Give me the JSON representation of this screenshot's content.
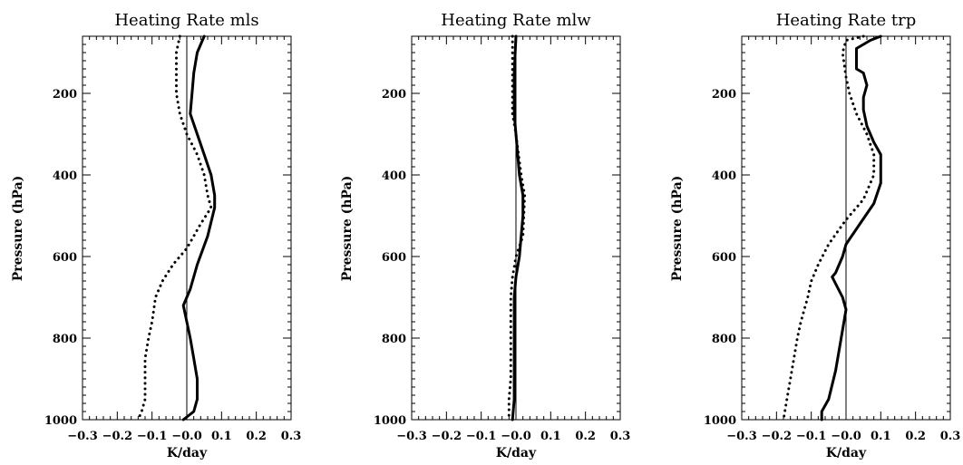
{
  "chart_data": [
    {
      "type": "line",
      "title": "Heating Rate mls",
      "xlabel": "K/day",
      "ylabel": "Pressure (hPa)",
      "xlim": [
        -0.3,
        0.3
      ],
      "ylim": [
        1000,
        60
      ],
      "y_inverted": true,
      "xticks": [
        -0.3,
        -0.2,
        -0.1,
        0.0,
        0.1,
        0.2,
        0.3
      ],
      "xtick_labels": [
        "−0.3",
        "−0.2",
        "−0.1",
        "−0.0",
        "0.1",
        "0.2",
        "0.3"
      ],
      "yticks": [
        200,
        400,
        600,
        800,
        1000
      ],
      "ytick_labels": [
        "200",
        "400",
        "600",
        "800",
        "1000"
      ],
      "zero_line": true,
      "series": [
        {
          "style": "solid",
          "points": [
            [
              0.05,
              60
            ],
            [
              0.03,
              100
            ],
            [
              0.02,
              150
            ],
            [
              0.015,
              200
            ],
            [
              0.01,
              250
            ],
            [
              0.03,
              300
            ],
            [
              0.05,
              350
            ],
            [
              0.07,
              400
            ],
            [
              0.08,
              450
            ],
            [
              0.08,
              480
            ],
            [
              0.06,
              550
            ],
            [
              0.03,
              620
            ],
            [
              0.01,
              680
            ],
            [
              -0.01,
              720
            ],
            [
              0.0,
              760
            ],
            [
              0.01,
              800
            ],
            [
              0.02,
              850
            ],
            [
              0.03,
              900
            ],
            [
              0.03,
              950
            ],
            [
              0.02,
              980
            ],
            [
              -0.01,
              1000
            ]
          ]
        },
        {
          "style": "dotted",
          "points": [
            [
              -0.02,
              60
            ],
            [
              -0.03,
              100
            ],
            [
              -0.03,
              150
            ],
            [
              -0.03,
              200
            ],
            [
              -0.02,
              250
            ],
            [
              0.0,
              300
            ],
            [
              0.03,
              350
            ],
            [
              0.05,
              400
            ],
            [
              0.06,
              450
            ],
            [
              0.07,
              480
            ],
            [
              0.04,
              520
            ],
            [
              0.0,
              580
            ],
            [
              -0.04,
              620
            ],
            [
              -0.07,
              660
            ],
            [
              -0.09,
              700
            ],
            [
              -0.1,
              760
            ],
            [
              -0.11,
              800
            ],
            [
              -0.12,
              850
            ],
            [
              -0.12,
              900
            ],
            [
              -0.12,
              950
            ],
            [
              -0.13,
              980
            ],
            [
              -0.14,
              1000
            ]
          ]
        }
      ]
    },
    {
      "type": "line",
      "title": "Heating Rate mlw",
      "xlabel": "K/day",
      "ylabel": "Pressure (hPa)",
      "xlim": [
        -0.3,
        0.3
      ],
      "ylim": [
        1000,
        60
      ],
      "y_inverted": true,
      "xticks": [
        -0.3,
        -0.2,
        -0.1,
        0.0,
        0.1,
        0.2,
        0.3
      ],
      "xtick_labels": [
        "−0.3",
        "−0.2",
        "−0.1",
        "−0.0",
        "0.1",
        "0.2",
        "0.3"
      ],
      "yticks": [
        200,
        400,
        600,
        800,
        1000
      ],
      "ytick_labels": [
        "200",
        "400",
        "600",
        "800",
        "1000"
      ],
      "zero_line": true,
      "series": [
        {
          "style": "solid",
          "points": [
            [
              0.0,
              60
            ],
            [
              -0.005,
              150
            ],
            [
              -0.005,
              250
            ],
            [
              0.0,
              300
            ],
            [
              0.01,
              400
            ],
            [
              0.02,
              450
            ],
            [
              0.02,
              500
            ],
            [
              0.01,
              600
            ],
            [
              0.0,
              650
            ],
            [
              -0.005,
              700
            ],
            [
              -0.005,
              800
            ],
            [
              -0.005,
              900
            ],
            [
              -0.005,
              950
            ],
            [
              -0.01,
              1000
            ]
          ]
        },
        {
          "style": "dotted",
          "points": [
            [
              -0.01,
              60
            ],
            [
              -0.01,
              150
            ],
            [
              -0.01,
              250
            ],
            [
              0.0,
              300
            ],
            [
              0.015,
              400
            ],
            [
              0.025,
              450
            ],
            [
              0.02,
              550
            ],
            [
              0.0,
              600
            ],
            [
              -0.01,
              650
            ],
            [
              -0.015,
              700
            ],
            [
              -0.015,
              800
            ],
            [
              -0.015,
              900
            ],
            [
              -0.02,
              950
            ],
            [
              -0.02,
              1000
            ]
          ]
        }
      ]
    },
    {
      "type": "line",
      "title": "Heating Rate trp",
      "xlabel": "K/day",
      "ylabel": "Pressure (hPa)",
      "xlim": [
        -0.3,
        0.3
      ],
      "ylim": [
        1000,
        60
      ],
      "y_inverted": true,
      "xticks": [
        -0.3,
        -0.2,
        -0.1,
        0.0,
        0.1,
        0.2,
        0.3
      ],
      "xtick_labels": [
        "−0.3",
        "−0.2",
        "−0.1",
        "−0.0",
        "0.1",
        "0.2",
        "0.3"
      ],
      "yticks": [
        200,
        400,
        600,
        800,
        1000
      ],
      "ytick_labels": [
        "200",
        "400",
        "600",
        "800",
        "1000"
      ],
      "zero_line": true,
      "series": [
        {
          "style": "solid",
          "points": [
            [
              0.1,
              60
            ],
            [
              0.07,
              70
            ],
            [
              0.03,
              90
            ],
            [
              0.03,
              120
            ],
            [
              0.03,
              140
            ],
            [
              0.05,
              150
            ],
            [
              0.06,
              180
            ],
            [
              0.05,
              210
            ],
            [
              0.05,
              240
            ],
            [
              0.06,
              280
            ],
            [
              0.08,
              320
            ],
            [
              0.1,
              350
            ],
            [
              0.1,
              420
            ],
            [
              0.08,
              470
            ],
            [
              0.04,
              520
            ],
            [
              0.0,
              570
            ],
            [
              -0.01,
              600
            ],
            [
              -0.03,
              640
            ],
            [
              -0.04,
              650
            ],
            [
              -0.01,
              700
            ],
            [
              0.0,
              730
            ],
            [
              -0.01,
              780
            ],
            [
              -0.03,
              880
            ],
            [
              -0.05,
              950
            ],
            [
              -0.07,
              980
            ],
            [
              -0.07,
              1000
            ]
          ]
        },
        {
          "style": "dotted",
          "points": [
            [
              0.05,
              60
            ],
            [
              0.0,
              70
            ],
            [
              -0.01,
              100
            ],
            [
              0.0,
              160
            ],
            [
              0.01,
              200
            ],
            [
              0.03,
              250
            ],
            [
              0.06,
              300
            ],
            [
              0.08,
              350
            ],
            [
              0.08,
              400
            ],
            [
              0.05,
              460
            ],
            [
              0.0,
              510
            ],
            [
              -0.05,
              570
            ],
            [
              -0.08,
              620
            ],
            [
              -0.1,
              660
            ],
            [
              -0.11,
              700
            ],
            [
              -0.13,
              760
            ],
            [
              -0.14,
              800
            ],
            [
              -0.15,
              850
            ],
            [
              -0.16,
              900
            ],
            [
              -0.17,
              950
            ],
            [
              -0.18,
              1000
            ]
          ]
        }
      ]
    }
  ]
}
